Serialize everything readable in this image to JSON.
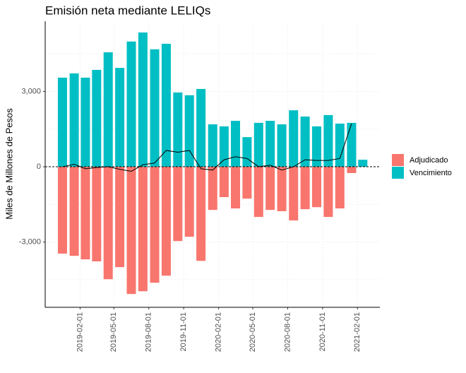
{
  "chart_data": {
    "type": "bar",
    "title": "Emisión neta mediante LELIQs",
    "y_label": "Miles de Millones de Pesos",
    "x": [
      "2018-12",
      "2019-01",
      "2019-02",
      "2019-03",
      "2019-04",
      "2019-05",
      "2019-06",
      "2019-07",
      "2019-08",
      "2019-09",
      "2019-10",
      "2019-11",
      "2019-12",
      "2020-01",
      "2020-02",
      "2020-03",
      "2020-04",
      "2020-05",
      "2020-06",
      "2020-07",
      "2020-08",
      "2020-09",
      "2020-10",
      "2020-11",
      "2020-12",
      "2021-01",
      "2021-02"
    ],
    "series": [
      {
        "name": "Adjudicado",
        "color": "#F8766D",
        "values": [
          -3460,
          -3550,
          -3690,
          -3770,
          -4480,
          -4000,
          -5070,
          -4960,
          -4620,
          -4340,
          -2960,
          -2790,
          -3750,
          -1720,
          -1210,
          -1660,
          -1270,
          -2000,
          -1720,
          -1770,
          -2140,
          -1690,
          -1610,
          -2000,
          -1660,
          -250,
          null
        ]
      },
      {
        "name": "Vencimiento",
        "color": "#00BFC4",
        "values": [
          3550,
          3720,
          3550,
          3860,
          4560,
          3940,
          4990,
          5350,
          4680,
          4900,
          2960,
          2850,
          3100,
          1690,
          1610,
          1830,
          1180,
          1750,
          1830,
          1690,
          2250,
          2000,
          1610,
          2060,
          1720,
          1750,
          280
        ]
      }
    ],
    "line": {
      "color": "#000000",
      "values": [
        0,
        100,
        -80,
        -30,
        0,
        -100,
        -180,
        80,
        150,
        650,
        580,
        650,
        -80,
        -130,
        280,
        400,
        330,
        0,
        60,
        -130,
        0,
        280,
        250,
        250,
        330,
        1720,
        null
      ]
    },
    "hline": 0,
    "xlim": [
      "2018-11",
      "2021-04"
    ],
    "xticks": [
      "2019-02-01",
      "2019-05-01",
      "2019-08-01",
      "2019-11-01",
      "2020-02-01",
      "2020-05-01",
      "2020-08-01",
      "2020-11-01",
      "2021-02-01"
    ],
    "ylim": [
      -5600,
      5800
    ],
    "yticks": [
      {
        "value": -3000,
        "label": "-3,000"
      },
      0,
      {
        "value": 3000,
        "label": "3,000"
      }
    ],
    "yminor": [
      -4500,
      -1500,
      1500,
      4500
    ],
    "grid": true,
    "legend": "right"
  }
}
